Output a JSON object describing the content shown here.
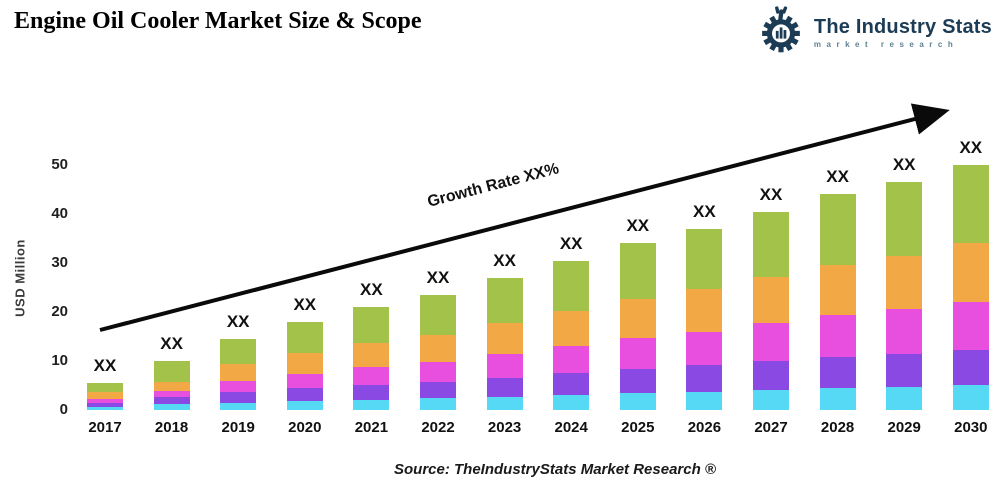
{
  "header": {
    "title": "Engine Oil Cooler Market Size & Scope"
  },
  "logo": {
    "name": "The Industry Stats",
    "tagline": "market research",
    "brand_color": "#1c3c55",
    "tagline_color": "#5e8294"
  },
  "chart_data": {
    "type": "bar",
    "stacked": true,
    "categories": [
      "2017",
      "2018",
      "2019",
      "2020",
      "2021",
      "2022",
      "2023",
      "2024",
      "2025",
      "2026",
      "2027",
      "2028",
      "2029",
      "2030"
    ],
    "series": [
      {
        "key": "cyan",
        "name": "Cyan (bottom segment)",
        "color": "#55d9f5",
        "values": [
          0.6,
          1.2,
          1.5,
          1.8,
          2.1,
          2.4,
          2.7,
          3.1,
          3.4,
          3.7,
          4.1,
          4.4,
          4.7,
          5.2
        ]
      },
      {
        "key": "purple",
        "name": "Purple segment",
        "color": "#8b49e3",
        "values": [
          0.8,
          1.4,
          2.1,
          2.6,
          3.0,
          3.4,
          3.9,
          4.4,
          4.9,
          5.4,
          5.9,
          6.4,
          6.7,
          7.0
        ]
      },
      {
        "key": "magenta",
        "name": "Magenta segment",
        "color": "#e94fdf",
        "values": [
          0.9,
          1.3,
          2.4,
          3.0,
          3.6,
          4.1,
          4.8,
          5.5,
          6.3,
          6.9,
          7.7,
          8.5,
          9.2,
          9.9
        ]
      },
      {
        "key": "orange",
        "name": "Orange segment",
        "color": "#f2a844",
        "values": [
          1.3,
          1.9,
          3.4,
          4.2,
          4.9,
          5.5,
          6.3,
          7.2,
          8.0,
          8.7,
          9.5,
          10.3,
          10.9,
          12.0
        ]
      },
      {
        "key": "green",
        "name": "Green (top segment)",
        "color": "#a3c24a",
        "values": [
          1.9,
          4.2,
          5.1,
          6.4,
          7.4,
          8.1,
          9.3,
          10.3,
          11.4,
          12.3,
          13.3,
          14.4,
          15.0,
          15.9
        ]
      }
    ],
    "totals": [
      5.5,
      10,
      14.5,
      18,
      21,
      23.5,
      27,
      30.5,
      34,
      37,
      40.5,
      44,
      46.5,
      50
    ],
    "bar_value_label": "XX",
    "ylabel": "USD Million",
    "yticks": [
      0,
      10,
      20,
      30,
      40,
      50
    ],
    "ylim": [
      0,
      55
    ],
    "grid": false,
    "legend": "none",
    "annotation": {
      "text": "Growth Rate XX%"
    }
  },
  "footer": {
    "source": "Source: TheIndustryStats Market Research ®"
  }
}
